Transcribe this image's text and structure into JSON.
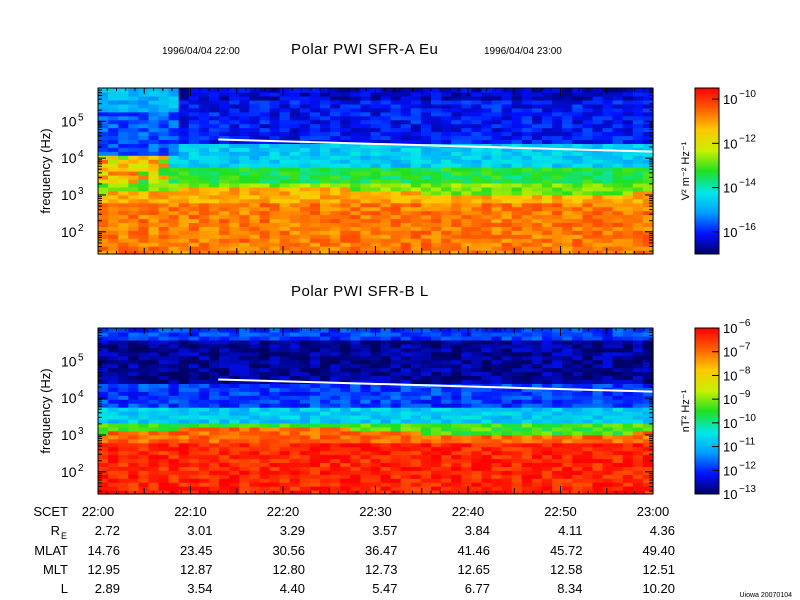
{
  "chart_data": [
    {
      "type": "heatmap",
      "title": "Polar PWI SFR-A Eu",
      "start_time": "1996/04/04 22:00",
      "end_time": "1996/04/04 23:00",
      "ylabel": "frequency (Hz)",
      "yscale": "log",
      "ylim": [
        25,
        800000
      ],
      "yticks": [
        {
          "base": "10",
          "exp": "2",
          "value": 100
        },
        {
          "base": "10",
          "exp": "3",
          "value": 1000
        },
        {
          "base": "10",
          "exp": "4",
          "value": 10000
        },
        {
          "base": "10",
          "exp": "5",
          "value": 100000
        }
      ],
      "colorbar": {
        "unit_label": "V² m⁻² Hz⁻¹",
        "range_log10": [
          -17,
          -9.5
        ],
        "ticks": [
          {
            "base": "10",
            "exp": "−10",
            "value": -10
          },
          {
            "base": "10",
            "exp": "−12",
            "value": -12
          },
          {
            "base": "10",
            "exp": "−14",
            "value": -14
          },
          {
            "base": "10",
            "exp": "−16",
            "value": -16
          }
        ]
      },
      "gyro_line": {
        "t_min": [
          13,
          60
        ],
        "freq_hz": [
          32000,
          15000
        ]
      }
    },
    {
      "type": "heatmap",
      "title": "Polar PWI SFR-B L",
      "ylabel": "frequency (Hz)",
      "yscale": "log",
      "ylim": [
        25,
        800000
      ],
      "yticks": [
        {
          "base": "10",
          "exp": "2",
          "value": 100
        },
        {
          "base": "10",
          "exp": "3",
          "value": 1000
        },
        {
          "base": "10",
          "exp": "4",
          "value": 10000
        },
        {
          "base": "10",
          "exp": "5",
          "value": 100000
        }
      ],
      "colorbar": {
        "unit_label": "nT² Hz⁻¹",
        "range_log10": [
          -13,
          -6
        ],
        "ticks": [
          {
            "base": "10",
            "exp": "−6",
            "value": -6
          },
          {
            "base": "10",
            "exp": "−7",
            "value": -7
          },
          {
            "base": "10",
            "exp": "−8",
            "value": -8
          },
          {
            "base": "10",
            "exp": "−9",
            "value": -9
          },
          {
            "base": "10",
            "exp": "−10",
            "value": -10
          },
          {
            "base": "10",
            "exp": "−11",
            "value": -11
          },
          {
            "base": "10",
            "exp": "−12",
            "value": -12
          },
          {
            "base": "10",
            "exp": "−13",
            "value": -13
          }
        ]
      },
      "gyro_line": {
        "t_min": [
          13,
          60
        ],
        "freq_hz": [
          32000,
          15000
        ]
      }
    }
  ],
  "ephemeris": {
    "row_labels": [
      {
        "main": "SCET",
        "sub": ""
      },
      {
        "main": "R",
        "sub": "E"
      },
      {
        "main": "MLAT",
        "sub": ""
      },
      {
        "main": "MLT",
        "sub": ""
      },
      {
        "main": "L",
        "sub": ""
      }
    ],
    "times": [
      "22:00",
      "22:10",
      "22:20",
      "22:30",
      "22:40",
      "22:50",
      "23:00"
    ],
    "RE": [
      "2.72",
      "3.01",
      "3.29",
      "3.57",
      "3.84",
      "4.11",
      "4.36"
    ],
    "MLAT": [
      "14.76",
      "23.45",
      "30.56",
      "36.47",
      "41.46",
      "45.72",
      "49.40"
    ],
    "MLT": [
      "12.95",
      "12.87",
      "12.80",
      "12.73",
      "12.65",
      "12.58",
      "12.51"
    ],
    "L": [
      "2.89",
      "3.54",
      "4.40",
      "5.47",
      "6.77",
      "8.34",
      "10.20"
    ]
  },
  "footer_tag": "Uiowa 20070104"
}
